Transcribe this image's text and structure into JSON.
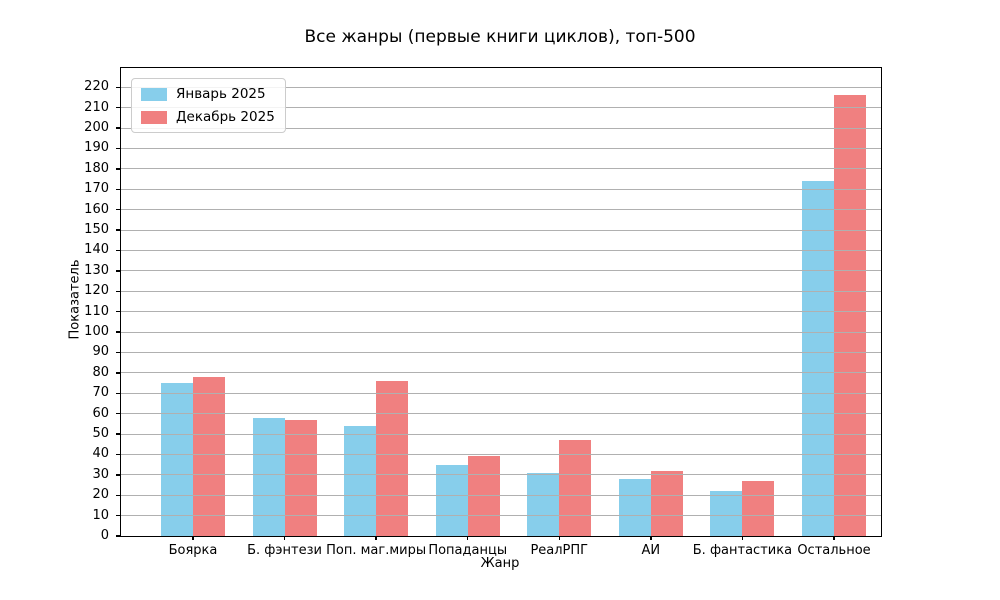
{
  "chart_data": {
    "type": "bar",
    "title": "Все жанры (первые книги циклов), топ-500",
    "xlabel": "Жанр",
    "ylabel": "Показатель",
    "categories": [
      "Боярка",
      "Б. фэнтези",
      "Поп. маг.миры",
      "Попаданцы",
      "РеалРПГ",
      "АИ",
      "Б. фантастика",
      "Остальное"
    ],
    "series": [
      {
        "name": "Январь 2025",
        "color": "#87CEEB",
        "values": [
          75,
          58,
          54,
          35,
          31,
          28,
          22,
          174
        ]
      },
      {
        "name": "Декабрь 2025",
        "color": "#F08080",
        "values": [
          78,
          57,
          76,
          39,
          47,
          32,
          27,
          216
        ]
      }
    ],
    "ylim": [
      0,
      229
    ],
    "yticks": [
      0,
      10,
      20,
      30,
      40,
      50,
      60,
      70,
      80,
      90,
      100,
      110,
      120,
      130,
      140,
      150,
      160,
      170,
      180,
      190,
      200,
      210,
      220
    ],
    "grid": "horizontal",
    "grid_color": "#b0b0b0",
    "legend_position": "upper-left",
    "background_color": "#ffffff"
  }
}
